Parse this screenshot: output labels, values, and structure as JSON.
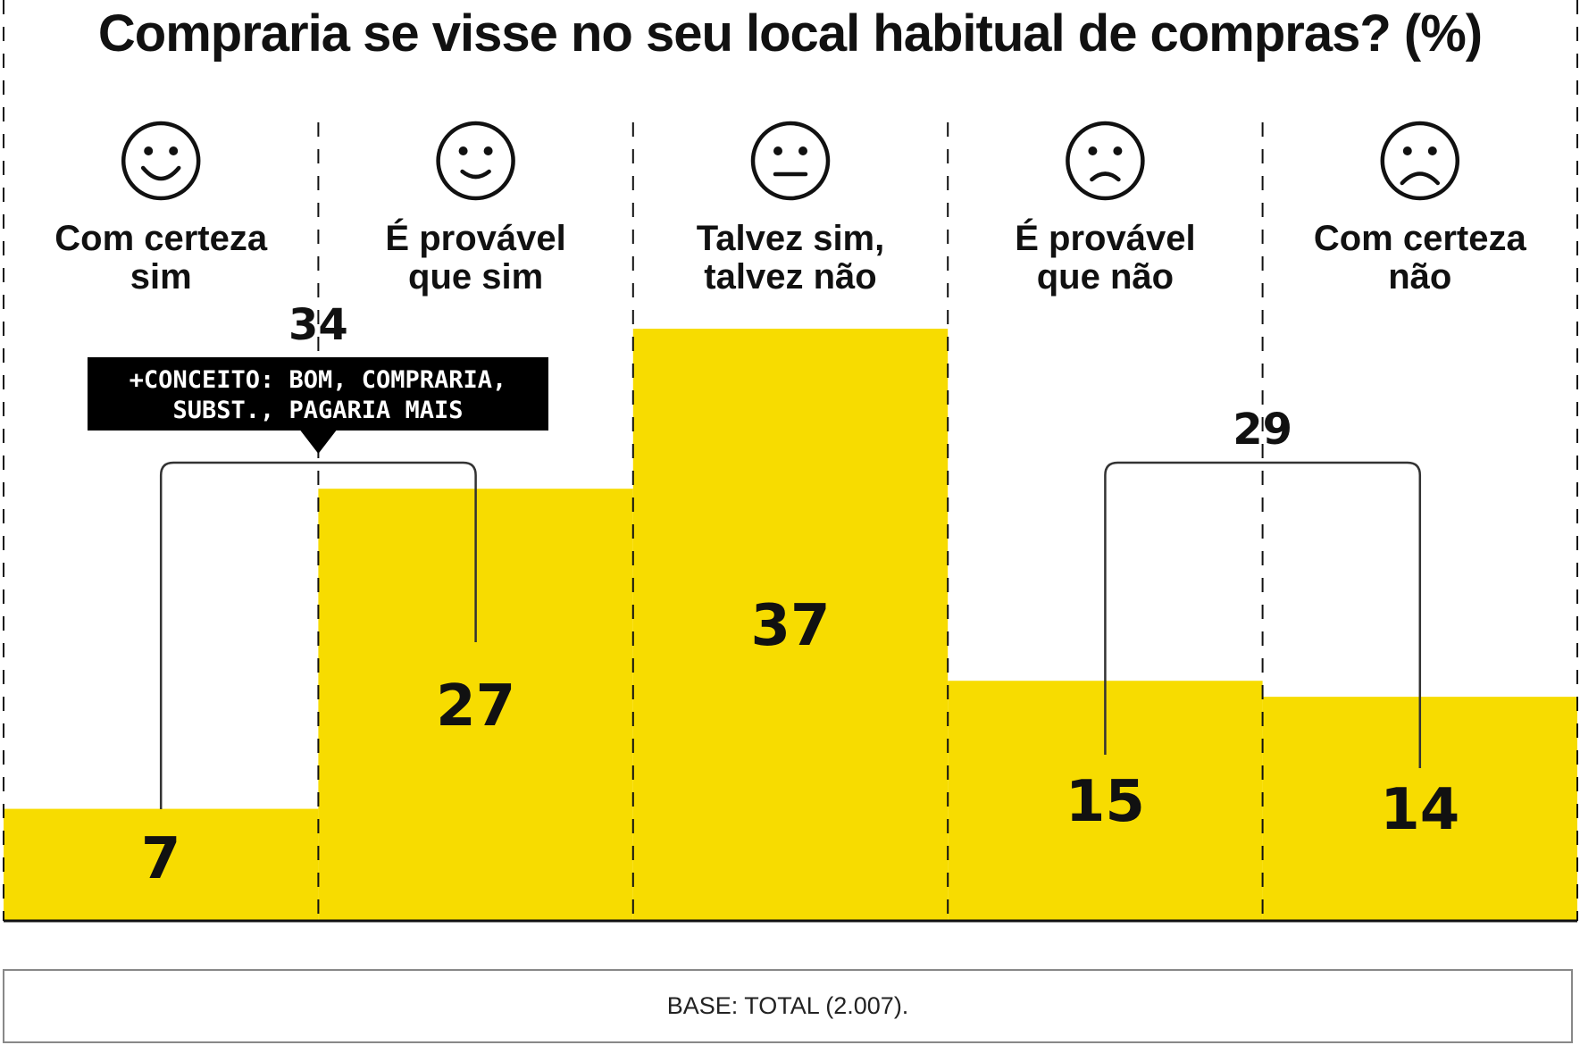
{
  "chart_data": {
    "type": "bar",
    "title": "Compraria se visse no seu local habitual de compras? (%)",
    "categories": [
      {
        "label_lines": [
          "Com certeza",
          "sim"
        ],
        "icon": "big-smile-face-icon"
      },
      {
        "label_lines": [
          "É provável",
          "que sim"
        ],
        "icon": "smile-face-icon"
      },
      {
        "label_lines": [
          "Talvez sim,",
          "talvez não"
        ],
        "icon": "neutral-face-icon"
      },
      {
        "label_lines": [
          "É provável",
          "que não"
        ],
        "icon": "frown-face-icon"
      },
      {
        "label_lines": [
          "Com certeza",
          "não"
        ],
        "icon": "big-frown-face-icon"
      }
    ],
    "values": [
      7,
      27,
      37,
      15,
      14
    ],
    "ylim": [
      0,
      37
    ],
    "bar_color": "#f7dc00",
    "groups": [
      {
        "from": 0,
        "to": 1,
        "total": "34",
        "note_lines": [
          "+CONCEITO: BOM, COMPRARIA,",
          "SUBST., PAGARIA MAIS"
        ]
      },
      {
        "from": 3,
        "to": 4,
        "total": "29"
      }
    ],
    "grid": "vertical dashed separators",
    "legend": "none"
  },
  "footer": {
    "base_text": "BASE: TOTAL (2.007)."
  }
}
